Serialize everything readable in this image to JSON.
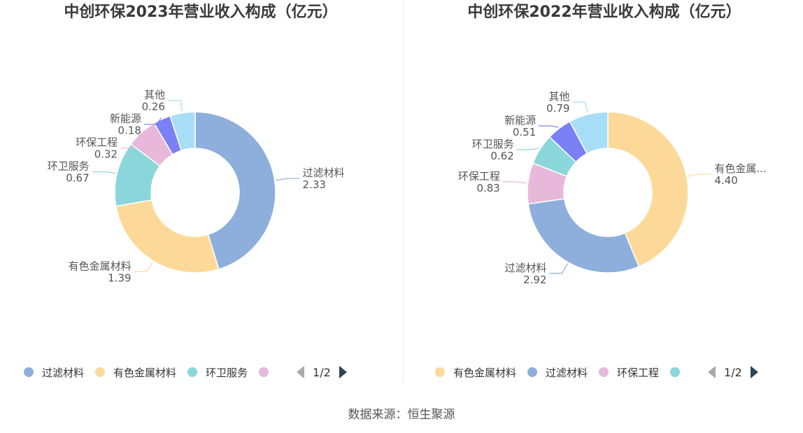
{
  "chart_data": [
    {
      "type": "pie",
      "title": "中创环保2023年营业收入构成（亿元）",
      "series": [
        {
          "name": "过滤材料",
          "label": "过滤材料",
          "value": 2.33,
          "value_text": "2.33",
          "color": "#8eaedb"
        },
        {
          "name": "有色金属材料",
          "label": "有色金属材料",
          "value": 1.39,
          "value_text": "1.39",
          "color": "#fdd999"
        },
        {
          "name": "环卫服务",
          "label": "环卫服务",
          "value": 0.67,
          "value_text": "0.67",
          "color": "#8ad6da"
        },
        {
          "name": "环保工程",
          "label": "环保工程",
          "value": 0.32,
          "value_text": "0.32",
          "color": "#e8b8da"
        },
        {
          "name": "新能源",
          "label": "新能源",
          "value": 0.18,
          "value_text": "0.18",
          "color": "#7b80f5"
        },
        {
          "name": "其他",
          "label": "其他",
          "value": 0.26,
          "value_text": "0.26",
          "color": "#a8ddf8"
        }
      ],
      "legend": {
        "items": [
          {
            "label": "过滤材料",
            "color": "#8eaedb"
          },
          {
            "label": "有色金属材料",
            "color": "#fdd999"
          },
          {
            "label": "环卫服务",
            "color": "#8ad6da"
          },
          {
            "label": "",
            "color": "#e8b8da"
          }
        ],
        "page": "1/2"
      }
    },
    {
      "type": "pie",
      "title": "中创环保2022年营业收入构成（亿元）",
      "series": [
        {
          "name": "有色金属材料",
          "label": "有色金属...",
          "value": 4.4,
          "value_text": "4.40",
          "color": "#fdd999"
        },
        {
          "name": "过滤材料",
          "label": "过滤材料",
          "value": 2.92,
          "value_text": "2.92",
          "color": "#8eaedb"
        },
        {
          "name": "环保工程",
          "label": "环保工程",
          "value": 0.83,
          "value_text": "0.83",
          "color": "#e8b8da"
        },
        {
          "name": "环卫服务",
          "label": "环卫服务",
          "value": 0.62,
          "value_text": "0.62",
          "color": "#8ad6da"
        },
        {
          "name": "新能源",
          "label": "新能源",
          "value": 0.51,
          "value_text": "0.51",
          "color": "#7b80f5"
        },
        {
          "name": "其他",
          "label": "其他",
          "value": 0.79,
          "value_text": "0.79",
          "color": "#a8ddf8"
        }
      ],
      "legend": {
        "items": [
          {
            "label": "有色金属材料",
            "color": "#fdd999"
          },
          {
            "label": "过滤材料",
            "color": "#8eaedb"
          },
          {
            "label": "环保工程",
            "color": "#e8b8da"
          },
          {
            "label": "",
            "color": "#8ad6da"
          }
        ],
        "page": "1/2"
      }
    }
  ],
  "source": "数据来源：恒生聚源"
}
